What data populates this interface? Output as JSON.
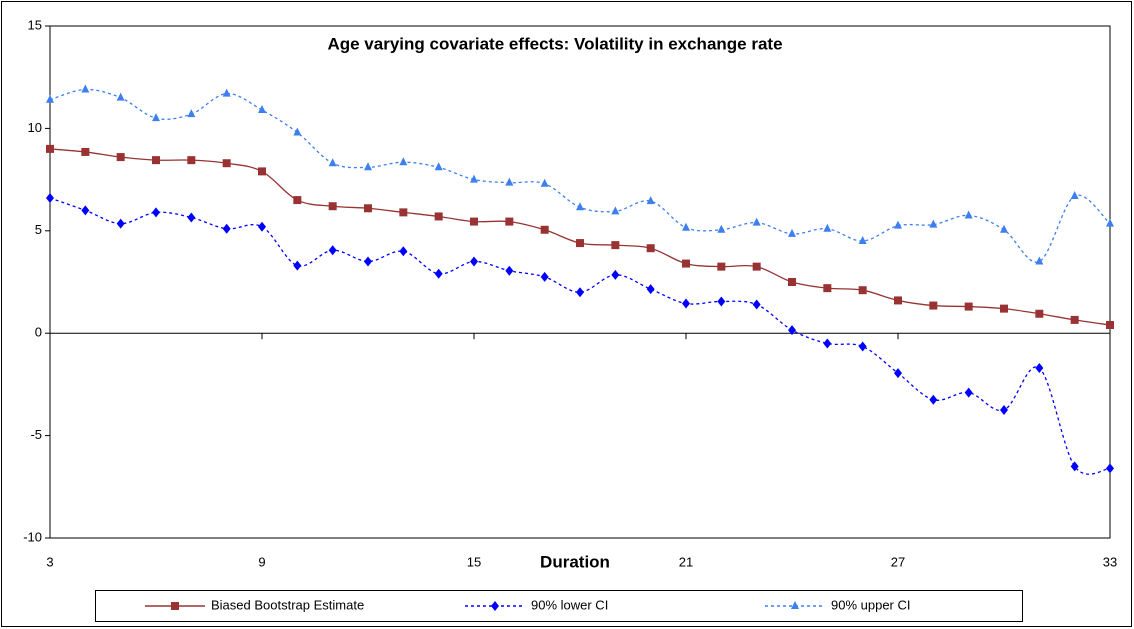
{
  "chart_data": {
    "type": "line",
    "title": "Age varying covariate effects: Volatility in exchange rate",
    "x_label": "Duration",
    "x": [
      3,
      4,
      5,
      6,
      7,
      8,
      9,
      10,
      11,
      12,
      13,
      14,
      15,
      16,
      17,
      18,
      19,
      20,
      21,
      22,
      23,
      24,
      25,
      26,
      27,
      28,
      29,
      30,
      31,
      32,
      33
    ],
    "xlim": [
      3,
      33
    ],
    "xticks": [
      3,
      9,
      15,
      21,
      27,
      33
    ],
    "ylim": [
      -10,
      15
    ],
    "yticks": [
      -10,
      -5,
      0,
      5,
      10,
      15
    ],
    "legend": "bottom",
    "series": [
      {
        "name": "Biased Bootstrap Estimate",
        "color": "#993333",
        "marker": "square",
        "dash": "solid",
        "values": [
          9.0,
          8.85,
          8.6,
          8.45,
          8.45,
          8.3,
          7.9,
          6.5,
          6.2,
          6.1,
          5.9,
          5.7,
          5.45,
          5.45,
          5.05,
          4.4,
          4.3,
          4.15,
          3.4,
          3.25,
          3.25,
          2.5,
          2.2,
          2.1,
          1.6,
          1.35,
          1.3,
          1.2,
          0.95,
          0.65,
          0.4
        ]
      },
      {
        "name": "90% lower CI",
        "color": "#0000ff",
        "marker": "diamond",
        "dash": "dotted",
        "values": [
          6.6,
          6.0,
          5.35,
          5.9,
          5.65,
          5.1,
          5.2,
          3.3,
          4.05,
          3.5,
          4.0,
          2.9,
          3.5,
          3.05,
          2.75,
          2.0,
          2.85,
          2.15,
          1.45,
          1.55,
          1.4,
          0.15,
          -0.5,
          -0.65,
          -1.95,
          -3.25,
          -2.9,
          -3.75,
          -1.7,
          -6.5,
          -6.6
        ]
      },
      {
        "name": "90% upper CI",
        "color": "#3d7fef",
        "marker": "triangle",
        "dash": "dotted",
        "values": [
          11.4,
          11.9,
          11.5,
          10.5,
          10.7,
          11.7,
          10.9,
          9.8,
          8.3,
          8.1,
          8.35,
          8.1,
          7.5,
          7.35,
          7.3,
          6.15,
          5.95,
          6.45,
          5.15,
          5.05,
          5.4,
          4.85,
          5.1,
          4.5,
          5.25,
          5.3,
          5.75,
          5.05,
          3.5,
          6.7,
          5.35
        ]
      }
    ]
  }
}
